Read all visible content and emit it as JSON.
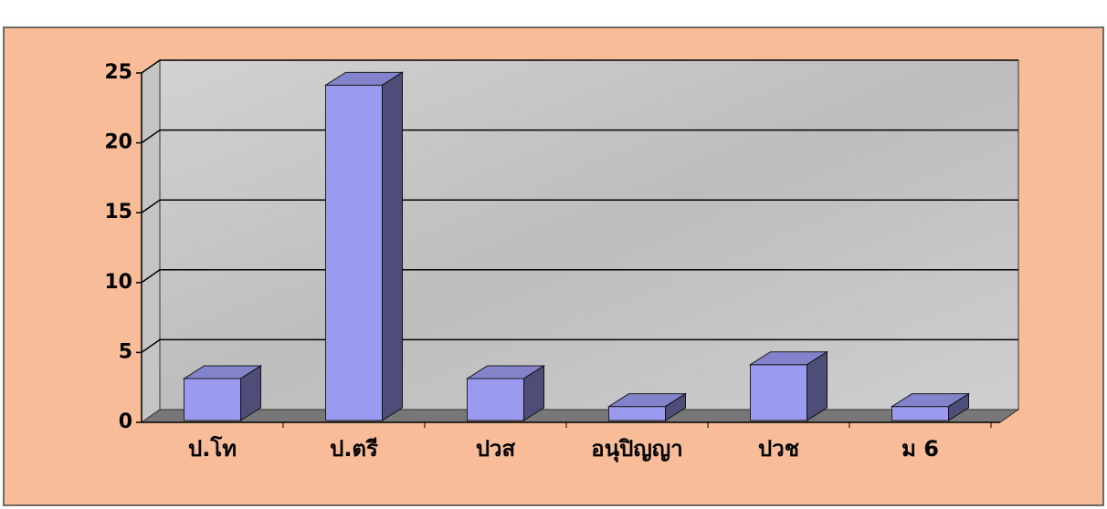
{
  "chart_data": {
    "type": "bar3d",
    "categories": [
      "ป.โท",
      "ป.ตรี",
      "ปวส",
      "อนุปิญญา",
      "ปวช",
      "ม 6"
    ],
    "values": [
      3,
      24,
      3,
      1,
      4,
      1
    ],
    "color": "#9a9af0",
    "ylim": [
      0,
      25
    ],
    "yticks": [
      0,
      5,
      10,
      15,
      20,
      25
    ],
    "grid": true
  }
}
